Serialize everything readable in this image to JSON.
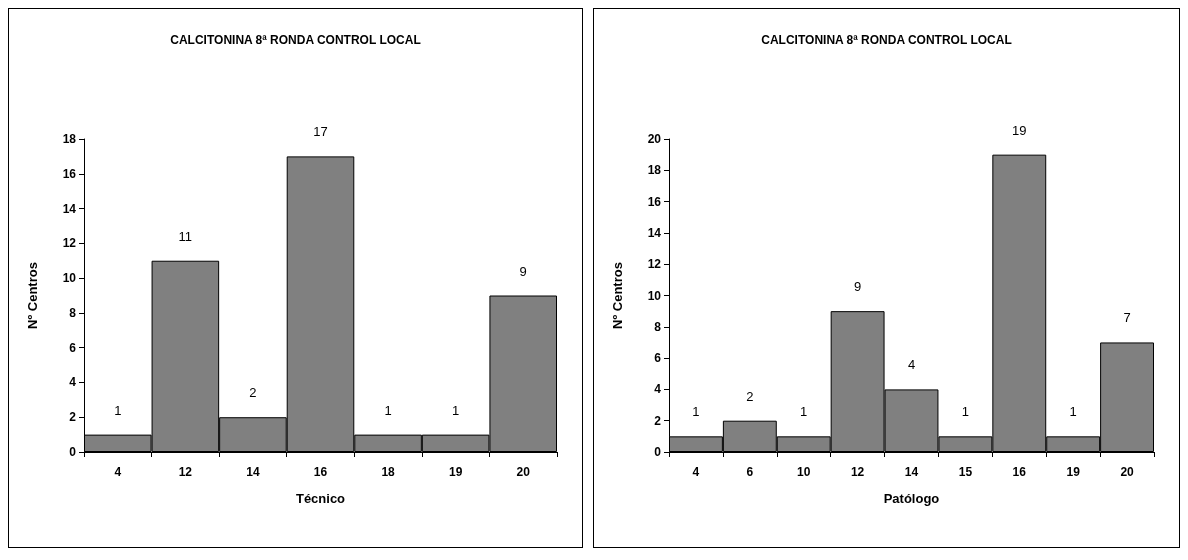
{
  "chart_data": [
    {
      "type": "bar",
      "title": "CALCITONINA 8ª RONDA CONTROL LOCAL",
      "xlabel": "Técnico",
      "ylabel": "Nº Centros",
      "categories": [
        "4",
        "12",
        "14",
        "16",
        "18",
        "19",
        "20"
      ],
      "values": [
        1,
        11,
        2,
        17,
        1,
        1,
        9
      ],
      "color": "#808080",
      "ylim": [
        0,
        18
      ],
      "yticks": [
        0,
        2,
        4,
        6,
        8,
        10,
        12,
        14,
        16,
        18
      ],
      "data_labels": true,
      "grid": false
    },
    {
      "type": "bar",
      "title": "CALCITONINA 8ª RONDA CONTROL LOCAL",
      "xlabel": "Patólogo",
      "ylabel": "Nº Centros",
      "categories": [
        "4",
        "6",
        "10",
        "12",
        "14",
        "15",
        "16",
        "19",
        "20"
      ],
      "values": [
        1,
        2,
        1,
        9,
        4,
        1,
        19,
        1,
        7
      ],
      "color": "#808080",
      "ylim": [
        0,
        20
      ],
      "yticks": [
        0,
        2,
        4,
        6,
        8,
        10,
        12,
        14,
        16,
        18,
        20
      ],
      "data_labels": true,
      "grid": false
    }
  ]
}
